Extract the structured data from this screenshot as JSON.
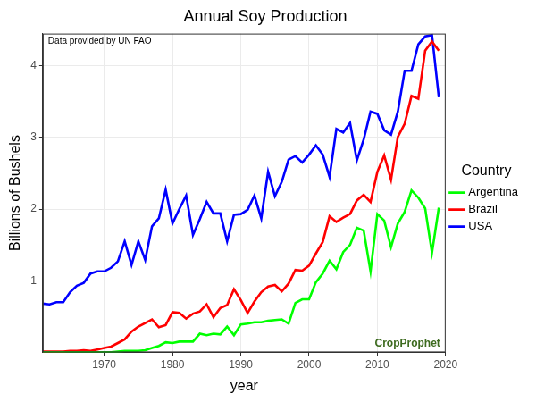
{
  "chart_data": {
    "type": "line",
    "title": "Annual Soy Production",
    "x_label": "year",
    "y_label": "Billions of Bushels",
    "legend_title": "Country",
    "legend": "right",
    "grid": true,
    "annotations": [
      "Data provided by UN FAO",
      "CropProphet"
    ],
    "x": [
      1961,
      1962,
      1963,
      1964,
      1965,
      1966,
      1967,
      1968,
      1969,
      1970,
      1971,
      1972,
      1973,
      1974,
      1975,
      1976,
      1977,
      1978,
      1979,
      1980,
      1981,
      1982,
      1983,
      1984,
      1985,
      1986,
      1987,
      1988,
      1989,
      1990,
      1991,
      1992,
      1993,
      1994,
      1995,
      1996,
      1997,
      1998,
      1999,
      2000,
      2001,
      2002,
      2003,
      2004,
      2005,
      2006,
      2007,
      2008,
      2009,
      2010,
      2011,
      2012,
      2013,
      2014,
      2015,
      2016,
      2017,
      2018,
      2019
    ],
    "xlim": [
      1961,
      2020
    ],
    "xticks": [
      1970,
      1980,
      1990,
      2000,
      2010,
      2020
    ],
    "ylim": [
      0,
      4.45
    ],
    "yticks": [
      1,
      2,
      3,
      4
    ],
    "series": [
      {
        "name": "Argentina",
        "color": "#00ff00",
        "values": [
          0,
          0,
          0,
          0,
          0,
          0,
          0,
          0,
          0,
          0,
          0,
          0.01,
          0.02,
          0.02,
          0.02,
          0.03,
          0.06,
          0.09,
          0.14,
          0.13,
          0.15,
          0.15,
          0.15,
          0.26,
          0.24,
          0.26,
          0.25,
          0.36,
          0.24,
          0.39,
          0.4,
          0.42,
          0.42,
          0.44,
          0.45,
          0.46,
          0.4,
          0.69,
          0.74,
          0.74,
          0.98,
          1.1,
          1.28,
          1.16,
          1.4,
          1.5,
          1.74,
          1.7,
          1.13,
          1.93,
          1.84,
          1.47,
          1.8,
          1.96,
          2.26,
          2.16,
          2.01,
          1.39,
          2.02
        ]
      },
      {
        "name": "Brazil",
        "color": "#ff0000",
        "values": [
          0.01,
          0.01,
          0.01,
          0.01,
          0.02,
          0.02,
          0.03,
          0.02,
          0.04,
          0.06,
          0.08,
          0.13,
          0.18,
          0.29,
          0.36,
          0.41,
          0.46,
          0.35,
          0.38,
          0.56,
          0.55,
          0.47,
          0.54,
          0.57,
          0.67,
          0.49,
          0.62,
          0.66,
          0.88,
          0.73,
          0.55,
          0.71,
          0.84,
          0.92,
          0.94,
          0.85,
          0.96,
          1.15,
          1.14,
          1.21,
          1.38,
          1.54,
          1.9,
          1.82,
          1.88,
          1.93,
          2.12,
          2.2,
          2.1,
          2.52,
          2.75,
          2.41,
          3.01,
          3.19,
          3.58,
          3.54,
          4.21,
          4.34,
          4.21
        ]
      },
      {
        "name": "USA",
        "color": "#0000ff",
        "values": [
          0.68,
          0.67,
          0.7,
          0.7,
          0.84,
          0.93,
          0.97,
          1.1,
          1.13,
          1.13,
          1.18,
          1.27,
          1.55,
          1.22,
          1.55,
          1.29,
          1.76,
          1.87,
          2.27,
          1.8,
          2.0,
          2.19,
          1.64,
          1.86,
          2.1,
          1.94,
          1.94,
          1.55,
          1.92,
          1.93,
          1.99,
          2.19,
          1.87,
          2.52,
          2.18,
          2.38,
          2.69,
          2.74,
          2.65,
          2.76,
          2.89,
          2.76,
          2.45,
          3.12,
          3.07,
          3.2,
          2.68,
          2.97,
          3.36,
          3.33,
          3.1,
          3.04,
          3.36,
          3.93,
          3.93,
          4.3,
          4.41,
          4.43,
          3.56
        ]
      }
    ]
  }
}
